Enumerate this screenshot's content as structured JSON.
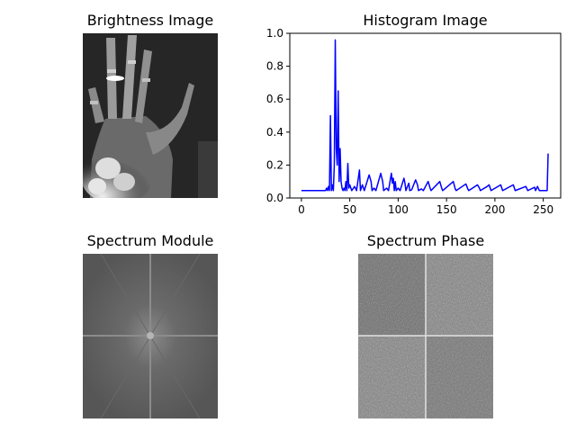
{
  "panels": {
    "brightness": {
      "title": "Brightness Image"
    },
    "histogram": {
      "title": "Histogram Image"
    },
    "module": {
      "title": "Spectrum Module"
    },
    "phase": {
      "title": "Spectrum Phase"
    }
  },
  "colors": {
    "line": "#0000ff",
    "axis": "#000000",
    "xray_bg": "#262626",
    "spectrum_bg": "#5f5f5f"
  },
  "chart_data": {
    "type": "line",
    "title": "Histogram Image",
    "xlabel": "",
    "ylabel": "",
    "xlim": [
      -12,
      268
    ],
    "ylim": [
      0.0,
      1.0
    ],
    "xticks": [
      0,
      50,
      100,
      150,
      200,
      250
    ],
    "yticks": [
      0.0,
      0.2,
      0.4,
      0.6,
      0.8,
      1.0
    ],
    "ytick_labels": [
      "0.0",
      "0.2",
      "0.4",
      "0.6",
      "0.8",
      "1.0"
    ],
    "grid": false,
    "series": [
      {
        "color": "#0000ff",
        "points": [
          [
            0,
            0.045
          ],
          [
            25,
            0.045
          ],
          [
            26,
            0.06
          ],
          [
            27,
            0.045
          ],
          [
            28,
            0.07
          ],
          [
            29,
            0.045
          ],
          [
            30,
            0.5
          ],
          [
            31,
            0.045
          ],
          [
            32,
            0.08
          ],
          [
            33,
            0.045
          ],
          [
            34,
            0.2
          ],
          [
            35,
            0.96
          ],
          [
            36,
            0.3
          ],
          [
            37,
            0.2
          ],
          [
            38,
            0.65
          ],
          [
            39,
            0.1
          ],
          [
            40,
            0.3
          ],
          [
            41,
            0.1
          ],
          [
            42,
            0.06
          ],
          [
            43,
            0.045
          ],
          [
            44,
            0.06
          ],
          [
            45,
            0.045
          ],
          [
            46,
            0.1
          ],
          [
            47,
            0.045
          ],
          [
            48,
            0.21
          ],
          [
            49,
            0.06
          ],
          [
            50,
            0.08
          ],
          [
            52,
            0.045
          ],
          [
            55,
            0.07
          ],
          [
            57,
            0.045
          ],
          [
            60,
            0.17
          ],
          [
            61,
            0.045
          ],
          [
            63,
            0.08
          ],
          [
            65,
            0.045
          ],
          [
            70,
            0.14
          ],
          [
            72,
            0.1
          ],
          [
            73,
            0.045
          ],
          [
            75,
            0.06
          ],
          [
            77,
            0.045
          ],
          [
            82,
            0.15
          ],
          [
            84,
            0.1
          ],
          [
            85,
            0.045
          ],
          [
            88,
            0.06
          ],
          [
            90,
            0.045
          ],
          [
            93,
            0.15
          ],
          [
            94,
            0.09
          ],
          [
            95,
            0.12
          ],
          [
            96,
            0.045
          ],
          [
            97,
            0.1
          ],
          [
            98,
            0.045
          ],
          [
            100,
            0.06
          ],
          [
            102,
            0.045
          ],
          [
            106,
            0.12
          ],
          [
            107,
            0.09
          ],
          [
            108,
            0.045
          ],
          [
            111,
            0.09
          ],
          [
            112,
            0.045
          ],
          [
            114,
            0.05
          ],
          [
            118,
            0.11
          ],
          [
            120,
            0.08
          ],
          [
            121,
            0.045
          ],
          [
            124,
            0.055
          ],
          [
            126,
            0.045
          ],
          [
            131,
            0.1
          ],
          [
            133,
            0.06
          ],
          [
            134,
            0.045
          ],
          [
            143,
            0.1
          ],
          [
            145,
            0.06
          ],
          [
            146,
            0.045
          ],
          [
            157,
            0.1
          ],
          [
            159,
            0.055
          ],
          [
            160,
            0.045
          ],
          [
            170,
            0.085
          ],
          [
            172,
            0.055
          ],
          [
            173,
            0.045
          ],
          [
            182,
            0.08
          ],
          [
            184,
            0.06
          ],
          [
            185,
            0.045
          ],
          [
            192,
            0.07
          ],
          [
            194,
            0.08
          ],
          [
            196,
            0.045
          ],
          [
            206,
            0.08
          ],
          [
            208,
            0.045
          ],
          [
            219,
            0.08
          ],
          [
            221,
            0.045
          ],
          [
            232,
            0.07
          ],
          [
            234,
            0.045
          ],
          [
            241,
            0.065
          ],
          [
            242,
            0.045
          ],
          [
            244,
            0.07
          ],
          [
            246,
            0.045
          ],
          [
            254,
            0.045
          ],
          [
            255,
            0.27
          ]
        ]
      }
    ]
  }
}
